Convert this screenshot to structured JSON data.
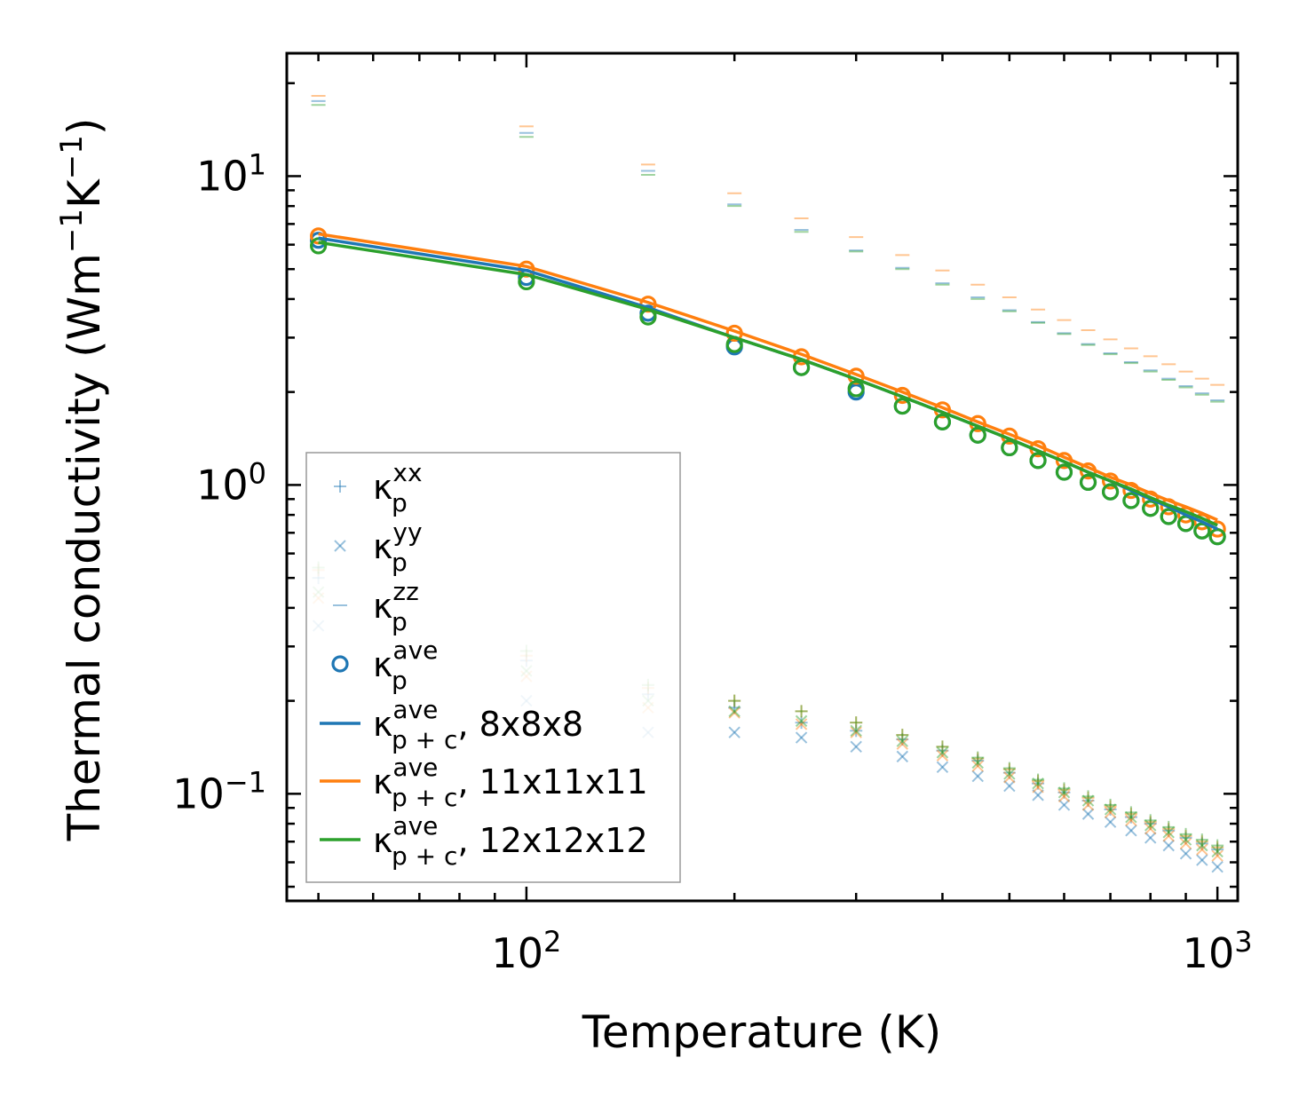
{
  "chart_data": {
    "type": "scatter",
    "xscale": "log",
    "yscale": "log",
    "xlim": [
      45,
      1070
    ],
    "ylim": [
      0.045,
      25
    ],
    "xlabel": "Temperature (K)",
    "ylabel": "Thermal conductivity (Wm",
    "ylabel_unit": "K",
    "ylabel_exp": "−1",
    "ylabel_close": ")",
    "x_ticks": [
      {
        "base": "10",
        "exp": "2",
        "value": 100
      },
      {
        "base": "10",
        "exp": "3",
        "value": 1000
      }
    ],
    "y_ticks": [
      {
        "base": "10",
        "exp": "−1",
        "value": 0.1
      },
      {
        "base": "10",
        "exp": "0",
        "value": 1
      },
      {
        "base": "10",
        "exp": "1",
        "value": 10
      }
    ],
    "temperatures": [
      50,
      100,
      150,
      200,
      250,
      300,
      350,
      400,
      450,
      500,
      550,
      600,
      650,
      700,
      750,
      800,
      850,
      900,
      950,
      1000
    ],
    "colors": {
      "c8": "#1f77b4",
      "c11": "#ff7f0e",
      "c12": "#2ca02c"
    },
    "series": [
      {
        "name": "8x8x8",
        "color": "#1f77b4",
        "kxx": [
          0.5,
          0.27,
          0.21,
          0.19,
          0.17,
          0.16,
          0.15,
          0.138,
          0.128,
          0.117,
          0.108,
          0.101,
          0.095,
          0.089,
          0.084,
          0.08,
          0.076,
          0.072,
          0.069,
          0.066
        ],
        "kyy": [
          0.35,
          0.2,
          0.158,
          0.158,
          0.152,
          0.142,
          0.132,
          0.122,
          0.114,
          0.106,
          0.099,
          0.092,
          0.086,
          0.081,
          0.076,
          0.072,
          0.068,
          0.064,
          0.061,
          0.058
        ],
        "kzz": [
          17.5,
          13.8,
          10.4,
          8.1,
          6.7,
          5.75,
          5.05,
          4.5,
          4.05,
          3.68,
          3.37,
          3.1,
          2.86,
          2.67,
          2.5,
          2.35,
          2.21,
          2.09,
          1.98,
          1.88
        ],
        "kave": [
          6.2,
          4.7,
          3.6,
          2.8,
          2.4,
          2.0,
          1.8,
          1.6,
          1.45,
          1.32,
          1.2,
          1.1,
          1.02,
          0.95,
          0.89,
          0.84,
          0.79,
          0.75,
          0.71,
          0.68
        ],
        "kpc": [
          6.3,
          4.95,
          3.75,
          3.0,
          2.55,
          2.2,
          1.93,
          1.72,
          1.55,
          1.41,
          1.29,
          1.19,
          1.1,
          1.03,
          0.96,
          0.9,
          0.85,
          0.8,
          0.76,
          0.72
        ]
      },
      {
        "name": "11x11x11",
        "color": "#ff7f0e",
        "kxx": [
          0.53,
          0.28,
          0.22,
          0.2,
          0.185,
          0.17,
          0.155,
          0.142,
          0.13,
          0.12,
          0.11,
          0.103,
          0.097,
          0.091,
          0.086,
          0.081,
          0.077,
          0.073,
          0.07,
          0.067
        ],
        "kyy": [
          0.43,
          0.24,
          0.19,
          0.183,
          0.168,
          0.158,
          0.145,
          0.133,
          0.123,
          0.113,
          0.105,
          0.098,
          0.092,
          0.087,
          0.082,
          0.077,
          0.073,
          0.069,
          0.066,
          0.063
        ],
        "kzz": [
          18.2,
          14.5,
          10.9,
          8.8,
          7.3,
          6.35,
          5.55,
          4.95,
          4.45,
          4.05,
          3.7,
          3.42,
          3.17,
          2.96,
          2.77,
          2.61,
          2.46,
          2.33,
          2.21,
          2.11
        ],
        "kave": [
          6.4,
          5.0,
          3.85,
          3.1,
          2.6,
          2.25,
          1.95,
          1.75,
          1.58,
          1.44,
          1.31,
          1.2,
          1.11,
          1.03,
          0.96,
          0.9,
          0.85,
          0.8,
          0.76,
          0.72
        ],
        "kpc": [
          6.5,
          5.1,
          3.9,
          3.15,
          2.65,
          2.28,
          2.0,
          1.78,
          1.6,
          1.46,
          1.34,
          1.23,
          1.14,
          1.06,
          1.0,
          0.94,
          0.89,
          0.85,
          0.81,
          0.77
        ]
      },
      {
        "name": "12x12x12",
        "color": "#2ca02c",
        "kxx": [
          0.54,
          0.29,
          0.225,
          0.2,
          0.185,
          0.17,
          0.155,
          0.142,
          0.131,
          0.121,
          0.111,
          0.104,
          0.098,
          0.092,
          0.087,
          0.082,
          0.078,
          0.074,
          0.071,
          0.068
        ],
        "kyy": [
          0.45,
          0.25,
          0.2,
          0.185,
          0.172,
          0.16,
          0.148,
          0.136,
          0.126,
          0.116,
          0.108,
          0.101,
          0.095,
          0.089,
          0.084,
          0.079,
          0.075,
          0.071,
          0.068,
          0.065
        ],
        "kzz": [
          17.0,
          13.4,
          10.1,
          8.0,
          6.6,
          5.7,
          5.0,
          4.45,
          4.0,
          3.65,
          3.35,
          3.08,
          2.84,
          2.65,
          2.48,
          2.33,
          2.19,
          2.07,
          1.96,
          1.86
        ],
        "kave": [
          5.95,
          4.55,
          3.5,
          2.85,
          2.4,
          2.05,
          1.8,
          1.6,
          1.45,
          1.32,
          1.2,
          1.1,
          1.02,
          0.95,
          0.89,
          0.84,
          0.79,
          0.75,
          0.71,
          0.68
        ],
        "kpc": [
          6.1,
          4.8,
          3.7,
          3.0,
          2.55,
          2.2,
          1.93,
          1.72,
          1.55,
          1.41,
          1.29,
          1.19,
          1.1,
          1.03,
          0.97,
          0.91,
          0.86,
          0.82,
          0.78,
          0.74
        ]
      }
    ],
    "legend": {
      "placement": "lower-left",
      "base": "κ",
      "entries": [
        {
          "sub": "p",
          "sup": "xx",
          "suffix": "",
          "marker": "plus",
          "color": "#1f77b4"
        },
        {
          "sub": "p",
          "sup": "yy",
          "suffix": "",
          "marker": "x",
          "color": "#1f77b4"
        },
        {
          "sub": "p",
          "sup": "zz",
          "suffix": "",
          "marker": "dash",
          "color": "#1f77b4"
        },
        {
          "sub": "p",
          "sup": "ave",
          "suffix": "",
          "marker": "circle",
          "color": "#1f77b4"
        },
        {
          "sub": "p + c",
          "sup": "ave",
          "suffix": ", 8x8x8",
          "marker": "line",
          "color": "#1f77b4"
        },
        {
          "sub": "p + c",
          "sup": "ave",
          "suffix": ", 11x11x11",
          "marker": "line",
          "color": "#ff7f0e"
        },
        {
          "sub": "p + c",
          "sup": "ave",
          "suffix": ", 12x12x12",
          "marker": "line",
          "color": "#2ca02c"
        }
      ]
    }
  }
}
